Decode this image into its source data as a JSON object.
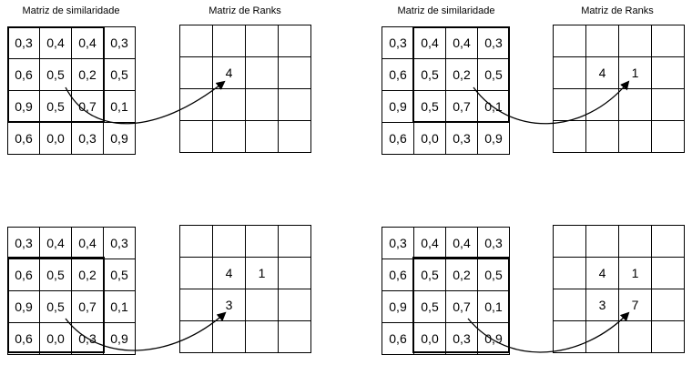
{
  "panels": [
    {
      "sim_title": "Matriz de similaridade",
      "rank_title": "Matriz de Ranks",
      "sim": [
        [
          "0,3",
          "0,4",
          "0,4",
          "0,3"
        ],
        [
          "0,6",
          "0,5",
          "0,2",
          "0,5"
        ],
        [
          "0,9",
          "0,5",
          "0,7",
          "0,1"
        ],
        [
          "0,6",
          "0,0",
          "0,3",
          "0,9"
        ]
      ],
      "rank": [
        [
          "",
          "",
          "",
          ""
        ],
        [
          "",
          "4",
          "",
          ""
        ],
        [
          "",
          "",
          "",
          ""
        ],
        [
          "",
          "",
          "",
          ""
        ]
      ]
    },
    {
      "sim_title": "Matriz de similaridade",
      "rank_title": "Matriz de Ranks",
      "sim": [
        [
          "0,3",
          "0,4",
          "0,4",
          "0,3"
        ],
        [
          "0,6",
          "0,5",
          "0,2",
          "0,5"
        ],
        [
          "0,9",
          "0,5",
          "0,7",
          "0,1"
        ],
        [
          "0,6",
          "0,0",
          "0,3",
          "0,9"
        ]
      ],
      "rank": [
        [
          "",
          "",
          "",
          ""
        ],
        [
          "",
          "4",
          "1",
          ""
        ],
        [
          "",
          "",
          "",
          ""
        ],
        [
          "",
          "",
          "",
          ""
        ]
      ]
    },
    {
      "sim_title": "",
      "rank_title": "",
      "sim": [
        [
          "0,3",
          "0,4",
          "0,4",
          "0,3"
        ],
        [
          "0,6",
          "0,5",
          "0,2",
          "0,5"
        ],
        [
          "0,9",
          "0,5",
          "0,7",
          "0,1"
        ],
        [
          "0,6",
          "0,0",
          "0,3",
          "0,9"
        ]
      ],
      "rank": [
        [
          "",
          "",
          "",
          ""
        ],
        [
          "",
          "4",
          "1",
          ""
        ],
        [
          "",
          "3",
          "",
          ""
        ],
        [
          "",
          "",
          "",
          ""
        ]
      ]
    },
    {
      "sim_title": "",
      "rank_title": "",
      "sim": [
        [
          "0,3",
          "0,4",
          "0,4",
          "0,3"
        ],
        [
          "0,6",
          "0,5",
          "0,2",
          "0,5"
        ],
        [
          "0,9",
          "0,5",
          "0,7",
          "0,1"
        ],
        [
          "0,6",
          "0,0",
          "0,3",
          "0,9"
        ]
      ],
      "rank": [
        [
          "",
          "",
          "",
          ""
        ],
        [
          "",
          "4",
          "1",
          ""
        ],
        [
          "",
          "3",
          "7",
          ""
        ],
        [
          "",
          "",
          "",
          ""
        ]
      ]
    }
  ]
}
